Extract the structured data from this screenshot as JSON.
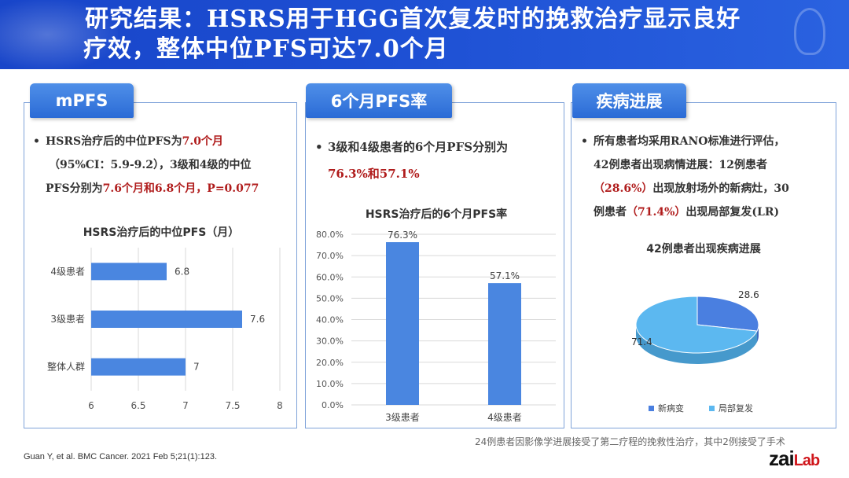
{
  "header": {
    "line1": "研究结果：HSRS用于HGG首次复发时的挽救治疗显示良好",
    "line2": "疗效，整体中位PFS可达7.0个月"
  },
  "panels": [
    {
      "tab": "mPFS",
      "bullet": {
        "l1a": "HSRS治疗后的中位PFS为",
        "l1b": "7.0个月",
        "l2": "（95%CI：5.9-9.2），3级和4级的中位",
        "l3a": "PFS分别为",
        "l3b": "7.6个月和6.8个月，P=0.077"
      }
    },
    {
      "tab": "6个月PFS率",
      "bullet": {
        "l1": "3级和4级患者的6个月PFS分别为",
        "l2": "76.3%和57.1%"
      }
    },
    {
      "tab": "疾病进展",
      "bullet": {
        "l1": "所有患者均采用RANO标准进行评估，",
        "l2": "42例患者出现病情进展：12例患者",
        "l3a": "（28.6%）",
        "l3b": "出现放射场外的新病灶，30",
        "l4a": "例患者",
        "l4b": "（71.4%）",
        "l4c": "出现局部复发(LR)"
      }
    }
  ],
  "chart_data": [
    {
      "type": "bar",
      "orientation": "horizontal",
      "title": "HSRS治疗后的中位PFS（月）",
      "categories": [
        "4级患者",
        "3级患者",
        "整体人群"
      ],
      "values": [
        6.8,
        7.6,
        7
      ],
      "value_labels": [
        "6.8",
        "7.6",
        "7"
      ],
      "xlim": [
        6,
        8
      ],
      "xticks": [
        "6",
        "6.5",
        "7",
        "7.5",
        "8"
      ],
      "color": "#4a86e0",
      "grid": true
    },
    {
      "type": "bar",
      "title": "HSRS治疗后的6个月PFS率",
      "categories": [
        "3级患者",
        "4级患者"
      ],
      "values": [
        76.3,
        57.1
      ],
      "value_labels": [
        "76.3%",
        "57.1%"
      ],
      "ylim": [
        0,
        80
      ],
      "yticks": [
        "0.0%",
        "10.0%",
        "20.0%",
        "30.0%",
        "40.0%",
        "50.0%",
        "60.0%",
        "70.0%",
        "80.0%"
      ],
      "color": "#4a86e0",
      "grid": true
    },
    {
      "type": "pie",
      "style": "3d",
      "title": "42例患者出现疾病进展",
      "labels": [
        "新病变",
        "局部复发"
      ],
      "values": [
        28.6,
        71.4
      ],
      "value_labels": [
        "28.6",
        "71.4"
      ],
      "colors": [
        "#4a7fe0",
        "#5cb8f0"
      ],
      "legend": "bottom"
    }
  ],
  "footer": {
    "note": "24例患者因影像学进展接受了第二疗程的挽救性治疗，其中2例接受了手术",
    "citation": "Guan Y, et al. BMC Cancer. 2021 Feb 5;21(1):123.",
    "logo_main": "zai",
    "logo_lab": "Lab"
  }
}
